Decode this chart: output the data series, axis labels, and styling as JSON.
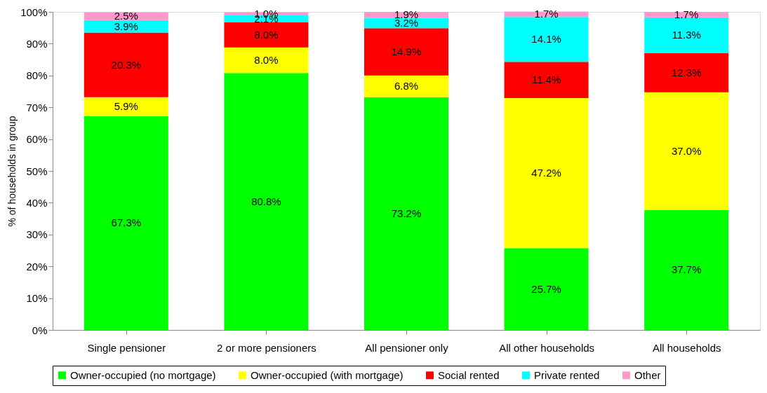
{
  "chart_data": {
    "type": "bar",
    "stacked": true,
    "ylabel": "% of households in group",
    "categories": [
      "Single pensioner",
      "2 or more pensioners",
      "All pensioner only",
      "All other households",
      "All households"
    ],
    "series": [
      {
        "name": "Owner-occupied (no mortgage)",
        "color": "#00ff00",
        "values": [
          67.3,
          80.8,
          73.2,
          25.7,
          37.7
        ],
        "value_labels": [
          "67.3%",
          "80.8%",
          "73.2%",
          "25.7%",
          "37.7%"
        ]
      },
      {
        "name": "Owner-occupied (with mortgage)",
        "color": "#ffff00",
        "values": [
          5.9,
          8.0,
          6.8,
          47.2,
          37.0
        ],
        "value_labels": [
          "5.9%",
          "8.0%",
          "6.8%",
          "47.2%",
          "37.0%"
        ]
      },
      {
        "name": "Social rented",
        "color": "#ff0000",
        "values": [
          20.3,
          8.0,
          14.9,
          11.4,
          12.3
        ],
        "value_labels": [
          "20.3%",
          "8.0%",
          "14.9%",
          "11.4%",
          "12.3%"
        ]
      },
      {
        "name": "Private rented",
        "color": "#00ffff",
        "values": [
          3.9,
          2.1,
          3.2,
          14.1,
          11.3
        ],
        "value_labels": [
          "3.9%",
          "2.1%",
          "3.2%",
          "14.1%",
          "11.3%"
        ]
      },
      {
        "name": "Other",
        "color": "#ff99cc",
        "values": [
          2.5,
          1.0,
          1.9,
          1.7,
          1.7
        ],
        "value_labels": [
          "2.5%",
          "1.0%",
          "1.9%",
          "1.7%",
          "1.7%"
        ]
      }
    ],
    "ylim": [
      0,
      100
    ],
    "yticks": [
      {
        "value": 0,
        "label": "0%"
      },
      {
        "value": 10,
        "label": "10%"
      },
      {
        "value": 20,
        "label": "20%"
      },
      {
        "value": 30,
        "label": "30%"
      },
      {
        "value": 40,
        "label": "40%"
      },
      {
        "value": 50,
        "label": "50%"
      },
      {
        "value": 60,
        "label": "60%"
      },
      {
        "value": 70,
        "label": "70%"
      },
      {
        "value": 80,
        "label": "80%"
      },
      {
        "value": 90,
        "label": "90%"
      },
      {
        "value": 100,
        "label": "100%"
      }
    ],
    "grid": false,
    "legend": "bottom"
  }
}
